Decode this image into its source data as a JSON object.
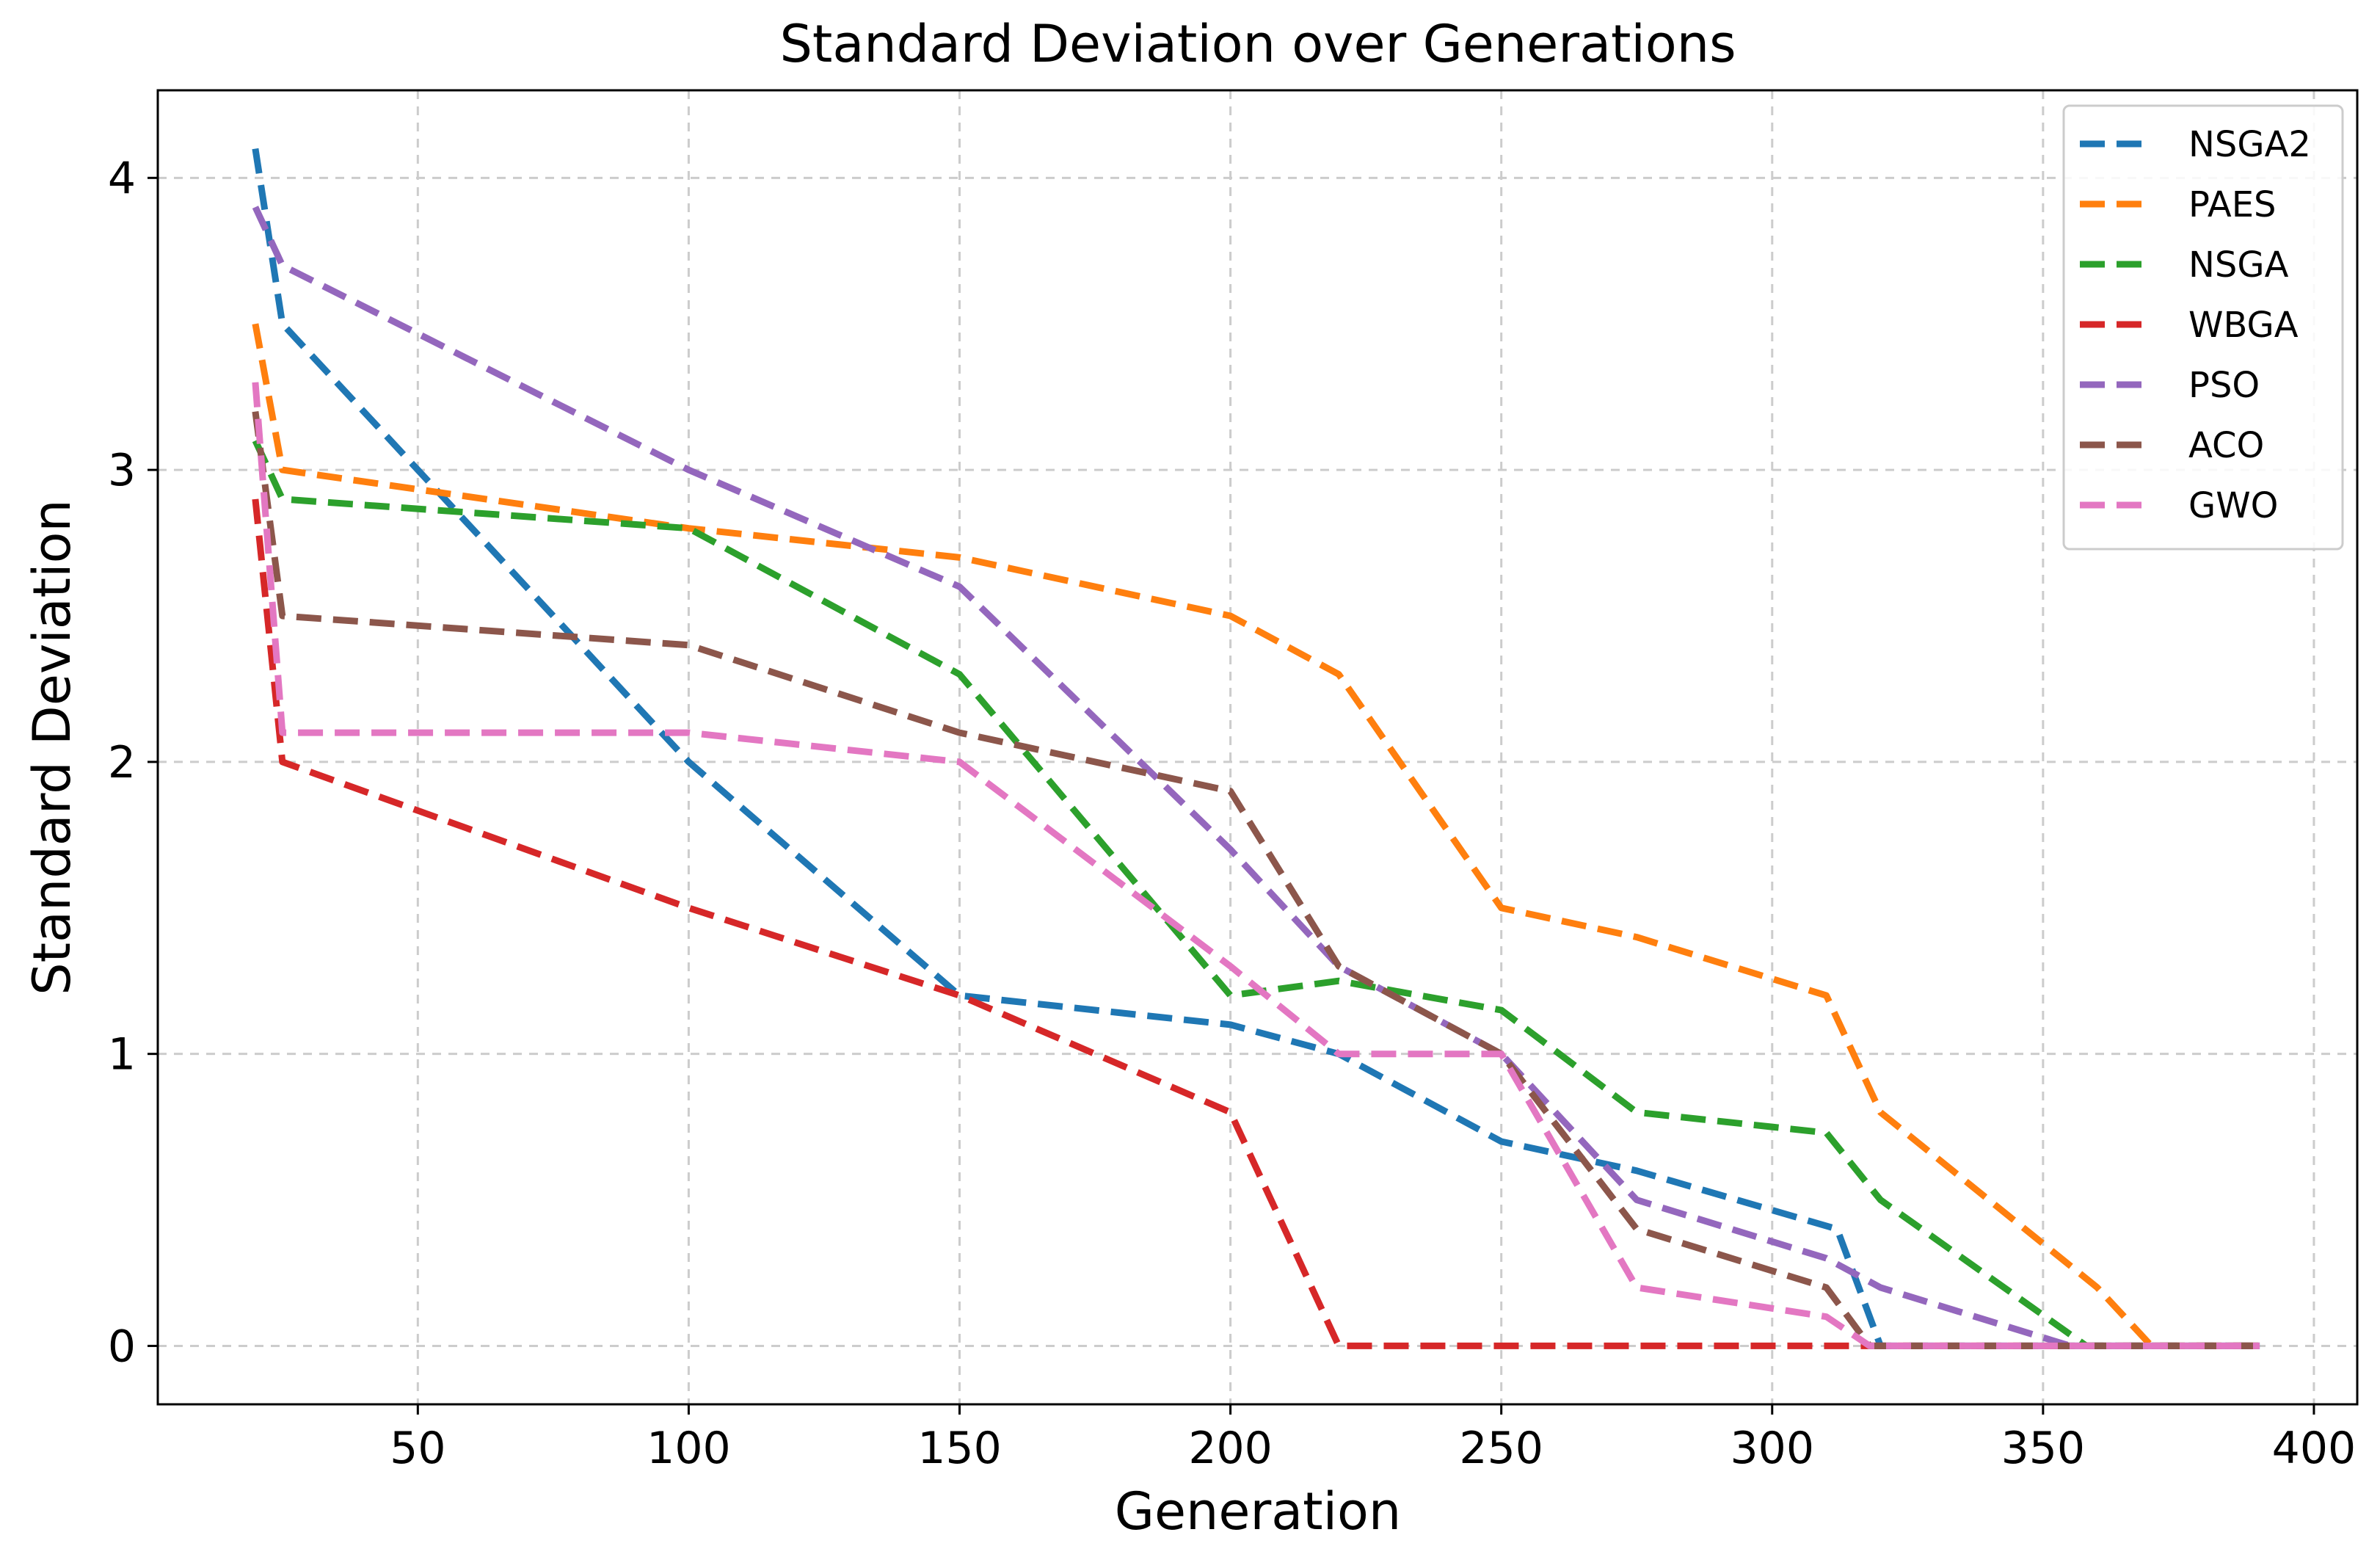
{
  "chart_data": {
    "type": "line",
    "title": "Standard Deviation over Generations",
    "xlabel": "Generation",
    "ylabel": "Standard Deviation",
    "xlim": [
      2,
      408
    ],
    "ylim": [
      -0.2,
      4.3
    ],
    "xticks": [
      50,
      100,
      150,
      200,
      250,
      300,
      350,
      400
    ],
    "yticks": [
      0,
      1,
      2,
      3,
      4
    ],
    "grid": true,
    "legend_position": "top-right",
    "series": [
      {
        "name": "NSGA2",
        "color": "#1f77b4",
        "x": [
          20,
          25,
          100,
          150,
          200,
          220,
          250,
          275,
          312,
          320,
          390
        ],
        "y": [
          4.1,
          3.5,
          2.0,
          1.2,
          1.1,
          1.0,
          0.7,
          0.6,
          0.4,
          0.0,
          0.0
        ]
      },
      {
        "name": "PAES",
        "color": "#ff7f0e",
        "x": [
          20,
          25,
          100,
          150,
          200,
          220,
          250,
          275,
          310,
          320,
          360,
          370,
          390
        ],
        "y": [
          3.5,
          3.0,
          2.8,
          2.7,
          2.5,
          2.3,
          1.5,
          1.4,
          1.2,
          0.8,
          0.2,
          0.0,
          0.0
        ]
      },
      {
        "name": "NSGA",
        "color": "#2ca02c",
        "x": [
          20,
          25,
          100,
          150,
          200,
          220,
          250,
          275,
          310,
          320,
          358,
          390
        ],
        "y": [
          3.1,
          2.9,
          2.8,
          2.3,
          1.2,
          1.25,
          1.15,
          0.8,
          0.73,
          0.5,
          0.0,
          0.0
        ]
      },
      {
        "name": "WBGA",
        "color": "#d62728",
        "x": [
          20,
          25,
          100,
          150,
          200,
          220,
          390
        ],
        "y": [
          2.9,
          2.0,
          1.5,
          1.2,
          0.8,
          0.0,
          0.0
        ]
      },
      {
        "name": "PSO",
        "color": "#9467bd",
        "x": [
          20,
          25,
          100,
          150,
          200,
          220,
          250,
          275,
          310,
          320,
          355,
          390
        ],
        "y": [
          3.9,
          3.7,
          3.0,
          2.6,
          1.7,
          1.3,
          1.0,
          0.5,
          0.3,
          0.2,
          0.0,
          0.0
        ]
      },
      {
        "name": "ACO",
        "color": "#8c564b",
        "x": [
          20,
          25,
          100,
          150,
          200,
          220,
          250,
          275,
          310,
          318,
          390
        ],
        "y": [
          3.2,
          2.5,
          2.4,
          2.1,
          1.9,
          1.3,
          1.0,
          0.4,
          0.2,
          0.0,
          0.0
        ]
      },
      {
        "name": "GWO",
        "color": "#e377c2",
        "x": [
          20,
          25,
          100,
          150,
          200,
          220,
          250,
          275,
          310,
          318,
          390
        ],
        "y": [
          3.3,
          2.1,
          2.1,
          2.0,
          1.3,
          1.0,
          1.0,
          0.2,
          0.1,
          0.0,
          0.0
        ]
      }
    ]
  }
}
